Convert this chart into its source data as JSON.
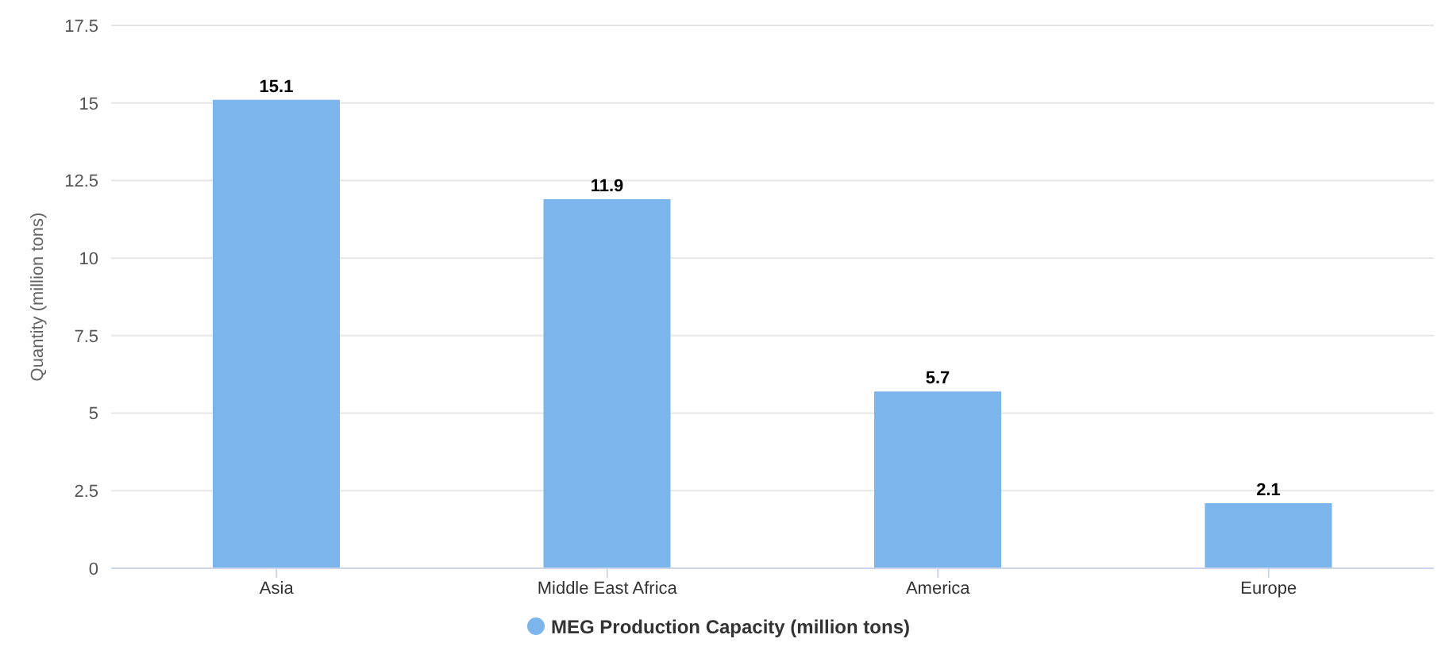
{
  "chart_data": {
    "type": "bar",
    "ylabel": "Quantity (million tons)",
    "categories": [
      "Asia",
      "Middle East Africa",
      "America",
      "Europe"
    ],
    "series": [
      {
        "name": "MEG Production Capacity (million tons)",
        "color": "#7cb5ec",
        "values": [
          15.1,
          11.9,
          5.7,
          2.1
        ]
      }
    ],
    "ylim": [
      0,
      17.5
    ],
    "yticks": [
      0,
      2.5,
      5,
      7.5,
      10,
      12.5,
      15,
      17.5
    ],
    "grid": "y",
    "legend": "bottom",
    "data_labels": true
  }
}
